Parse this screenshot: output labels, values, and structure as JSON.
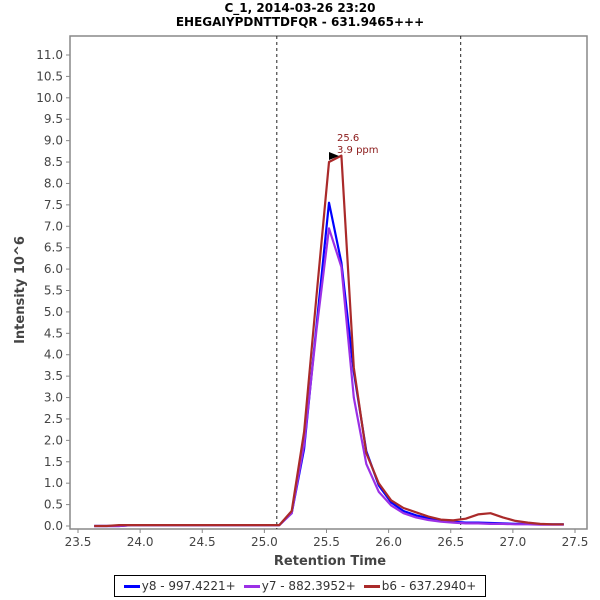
{
  "header": {
    "title": "C_1, 2014-03-26 23:20",
    "subtitle": "EHEGAIYPDNTTDFQR - 631.9465+++"
  },
  "annotation": {
    "rt_label": "25.6",
    "ppm_label": "3.9 ppm",
    "color": "#8b1a1a"
  },
  "legend": {
    "items": [
      {
        "label": "y8 - 997.4221+",
        "color": "#0000ff"
      },
      {
        "label": "y7 - 882.3952+",
        "color": "#9b30e6"
      },
      {
        "label": "b6 - 637.2940+",
        "color": "#aa2a2a"
      }
    ]
  },
  "chart_data": {
    "type": "line",
    "title": "C_1, 2014-03-26 23:20",
    "subtitle": "EHEGAIYPDNTTDFQR - 631.9465+++",
    "xlabel": "Retention Time",
    "ylabel": "Intensity 10^6",
    "xlim": [
      23.5,
      27.55
    ],
    "ylim": [
      0.0,
      11.3
    ],
    "xticks": [
      "23.5",
      "24.0",
      "24.5",
      "25.0",
      "25.5",
      "26.0",
      "26.5",
      "27.0",
      "27.5"
    ],
    "yticks": [
      "0.0",
      "0.5",
      "1.0",
      "1.5",
      "2.0",
      "2.5",
      "3.0",
      "3.5",
      "4.0",
      "4.5",
      "5.0",
      "5.5",
      "6.0",
      "6.5",
      "7.0",
      "7.5",
      "8.0",
      "8.5",
      "9.0",
      "9.5",
      "10.0",
      "10.5",
      "11.0"
    ],
    "grid": false,
    "legend_position": "bottom",
    "vertical_markers": [
      25.1,
      26.58
    ],
    "peak_annotation": {
      "x": 25.6,
      "y": 8.65,
      "text": [
        "25.6",
        "3.9 ppm"
      ]
    },
    "x": [
      23.63,
      23.73,
      23.83,
      23.93,
      24.03,
      24.13,
      24.23,
      24.33,
      24.43,
      24.53,
      24.63,
      24.73,
      24.83,
      24.93,
      25.03,
      25.12,
      25.22,
      25.32,
      25.42,
      25.52,
      25.62,
      25.72,
      25.82,
      25.92,
      26.02,
      26.12,
      26.22,
      26.32,
      26.42,
      26.52,
      26.62,
      26.72,
      26.82,
      26.92,
      27.02,
      27.12,
      27.22,
      27.32,
      27.41
    ],
    "series": [
      {
        "name": "y8 - 997.4221+",
        "color": "#0000ff",
        "values": [
          0.0,
          0.0,
          0.0,
          0.02,
          0.02,
          0.02,
          0.02,
          0.02,
          0.02,
          0.02,
          0.02,
          0.02,
          0.02,
          0.02,
          0.02,
          0.02,
          0.3,
          1.8,
          4.7,
          7.55,
          6.15,
          3.6,
          1.75,
          0.95,
          0.55,
          0.35,
          0.25,
          0.18,
          0.12,
          0.1,
          0.08,
          0.08,
          0.07,
          0.06,
          0.05,
          0.05,
          0.04,
          0.04,
          0.04
        ]
      },
      {
        "name": "y7 - 882.3952+",
        "color": "#9b30e6",
        "values": [
          0.0,
          0.0,
          0.0,
          0.02,
          0.02,
          0.02,
          0.02,
          0.02,
          0.02,
          0.02,
          0.02,
          0.02,
          0.02,
          0.02,
          0.02,
          0.02,
          0.3,
          1.9,
          4.6,
          6.95,
          6.05,
          3.0,
          1.45,
          0.8,
          0.48,
          0.3,
          0.2,
          0.14,
          0.1,
          0.08,
          0.06,
          0.06,
          0.05,
          0.05,
          0.04,
          0.04,
          0.03,
          0.03,
          0.03
        ]
      },
      {
        "name": "b6 - 637.2940+",
        "color": "#aa2a2a",
        "values": [
          0.0,
          0.0,
          0.02,
          0.02,
          0.02,
          0.02,
          0.02,
          0.02,
          0.02,
          0.02,
          0.02,
          0.02,
          0.02,
          0.02,
          0.02,
          0.02,
          0.35,
          2.2,
          5.4,
          8.5,
          8.65,
          3.7,
          1.7,
          1.0,
          0.6,
          0.42,
          0.32,
          0.22,
          0.15,
          0.13,
          0.17,
          0.27,
          0.3,
          0.2,
          0.12,
          0.08,
          0.05,
          0.04,
          0.04
        ]
      }
    ]
  }
}
